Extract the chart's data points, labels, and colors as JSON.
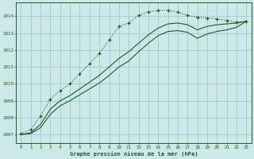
{
  "title": "Graphe pression niveau de la mer (hPa)",
  "bg_color": "#cce8e8",
  "grid_color": "#99cccc",
  "line_color": "#1e5c1e",
  "xlim": [
    -0.5,
    23.5
  ],
  "ylim": [
    1006.5,
    1014.8
  ],
  "xticks": [
    0,
    1,
    2,
    3,
    4,
    5,
    6,
    7,
    8,
    9,
    10,
    11,
    12,
    13,
    14,
    15,
    16,
    17,
    18,
    19,
    20,
    21,
    22,
    23
  ],
  "yticks": [
    1007,
    1008,
    1009,
    1010,
    1011,
    1012,
    1013,
    1014
  ],
  "line1_x": [
    0,
    1,
    2,
    3,
    4,
    5,
    6,
    7,
    8,
    9,
    10,
    11,
    12,
    13,
    14,
    15,
    16,
    17,
    18,
    19,
    20,
    21,
    22,
    23
  ],
  "line1_y": [
    1007.05,
    1007.3,
    1008.1,
    1009.1,
    1009.6,
    1010.0,
    1010.6,
    1011.2,
    1011.8,
    1012.6,
    1013.4,
    1013.6,
    1014.05,
    1014.25,
    1014.35,
    1014.35,
    1014.25,
    1014.05,
    1013.95,
    1013.9,
    1013.85,
    1013.75,
    1013.65,
    1013.7
  ],
  "line2_x": [
    0,
    1,
    2,
    3,
    4,
    5,
    6,
    7,
    8,
    9,
    10,
    11,
    12,
    13,
    14,
    15,
    16,
    17,
    18,
    19,
    20,
    21,
    22,
    23
  ],
  "line2_y": [
    1007.0,
    1007.1,
    1007.6,
    1008.5,
    1009.0,
    1009.3,
    1009.7,
    1010.1,
    1010.5,
    1011.0,
    1011.5,
    1011.9,
    1012.4,
    1012.9,
    1013.3,
    1013.55,
    1013.6,
    1013.5,
    1013.2,
    1013.4,
    1013.5,
    1013.55,
    1013.6,
    1013.7
  ],
  "line3_x": [
    0,
    1,
    2,
    3,
    4,
    5,
    6,
    7,
    8,
    9,
    10,
    11,
    12,
    13,
    14,
    15,
    16,
    17,
    18,
    19,
    20,
    21,
    22,
    23
  ],
  "line3_y": [
    1007.0,
    1007.05,
    1007.4,
    1008.2,
    1008.7,
    1009.0,
    1009.35,
    1009.7,
    1010.05,
    1010.5,
    1011.0,
    1011.35,
    1011.9,
    1012.4,
    1012.85,
    1013.1,
    1013.15,
    1013.05,
    1012.7,
    1012.95,
    1013.1,
    1013.2,
    1013.35,
    1013.7
  ]
}
